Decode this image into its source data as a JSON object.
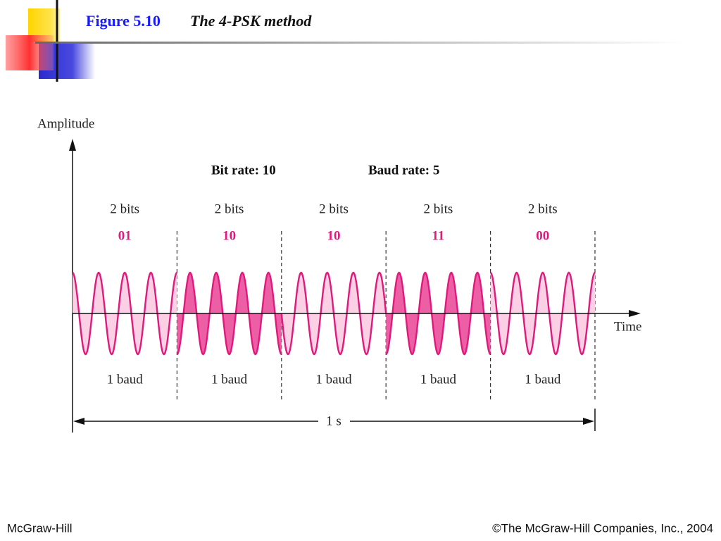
{
  "header": {
    "figure": "Figure 5.10",
    "title": "The 4-PSK method"
  },
  "diagram": {
    "y_axis_label": "Amplitude",
    "x_axis_label": "Time",
    "bit_rate": "Bit rate: 10",
    "baud_rate": "Baud rate: 5",
    "segments": [
      {
        "bits": "2 bits",
        "code": "01",
        "baud": "1 baud"
      },
      {
        "bits": "2 bits",
        "code": "10",
        "baud": "1 baud"
      },
      {
        "bits": "2 bits",
        "code": "10",
        "baud": "1 baud"
      },
      {
        "bits": "2 bits",
        "code": "11",
        "baud": "1 baud"
      },
      {
        "bits": "2 bits",
        "code": "00",
        "baud": "1 baud"
      }
    ],
    "duration": "1 s"
  },
  "footer": {
    "left": "McGraw-Hill",
    "right": "©The McGraw-Hill Companies, Inc., 2004"
  }
}
